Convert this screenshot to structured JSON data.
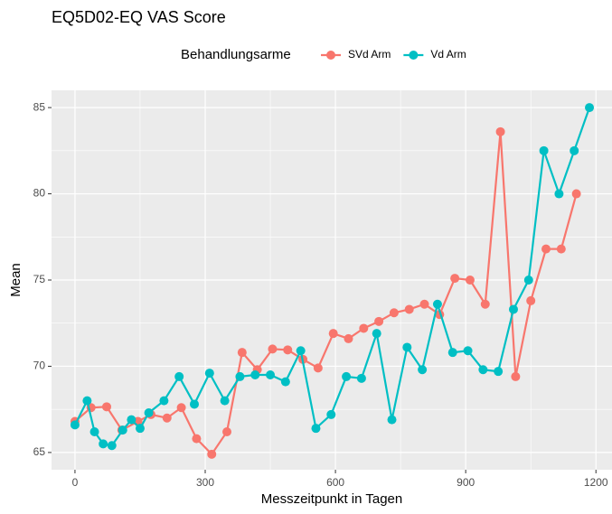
{
  "chart_data": {
    "type": "line",
    "title": "EQ5D02-EQ VAS Score",
    "xlabel": "Messzeitpunkt in Tagen",
    "ylabel": "Mean",
    "legend_title": "Behandlungsarme",
    "legend_position": "top",
    "grid": true,
    "xlim": [
      -54,
      1237
    ],
    "ylim": [
      64.0,
      86.0
    ],
    "xticks": [
      0,
      300,
      600,
      900,
      1200
    ],
    "yticks": [
      65,
      70,
      75,
      80,
      85
    ],
    "xminorticks": [
      150,
      450,
      750,
      1050
    ],
    "yminorticks": [
      67.5,
      72.5,
      77.5,
      82.5
    ],
    "series": [
      {
        "name": "SVd Arm",
        "color": "#f8766d",
        "x": [
          0,
          37,
          73,
          108,
          145,
          175,
          212,
          245,
          280,
          315,
          350,
          385,
          420,
          455,
          490,
          525,
          560,
          595,
          630,
          665,
          700,
          735,
          770,
          805,
          840,
          875,
          910,
          945,
          980,
          1015,
          1050,
          1085,
          1120,
          1155
        ],
        "values": [
          66.8,
          67.6,
          67.65,
          66.3,
          66.8,
          67.2,
          67.0,
          67.6,
          65.8,
          64.9,
          66.2,
          70.8,
          69.8,
          71.0,
          70.95,
          70.4,
          69.9,
          71.9,
          71.6,
          72.2,
          72.6,
          73.1,
          73.3,
          73.6,
          73.0,
          75.1,
          75.0,
          73.6,
          83.6,
          69.4,
          73.8,
          76.8,
          76.8,
          80.0
        ]
      },
      {
        "name": "Vd Arm",
        "color": "#00bfc4",
        "x": [
          0,
          28,
          45,
          65,
          85,
          110,
          130,
          150,
          170,
          205,
          240,
          275,
          310,
          345,
          380,
          415,
          450,
          485,
          520,
          555,
          590,
          625,
          660,
          695,
          730,
          765,
          800,
          835,
          870,
          905,
          940,
          975,
          1010,
          1045,
          1080,
          1115,
          1150,
          1185
        ],
        "values": [
          66.6,
          68.0,
          66.2,
          65.5,
          65.4,
          66.3,
          66.9,
          66.4,
          67.3,
          68.0,
          69.4,
          67.8,
          69.6,
          68.0,
          69.4,
          69.5,
          69.5,
          69.1,
          70.9,
          66.4,
          67.2,
          69.4,
          69.3,
          71.9,
          66.9,
          71.1,
          69.8,
          73.6,
          70.8,
          70.9,
          69.8,
          69.7,
          73.3,
          75.0,
          82.5,
          80.0,
          82.5,
          85.0
        ]
      }
    ]
  }
}
